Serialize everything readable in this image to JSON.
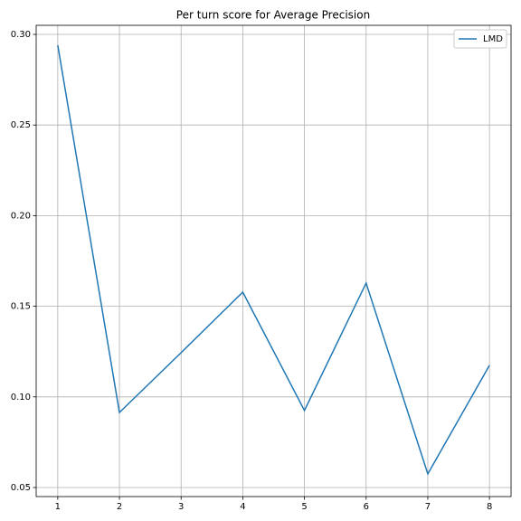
{
  "chart_data": {
    "type": "line",
    "title": "Per turn score for Average Precision",
    "x": [
      1,
      2,
      3,
      4,
      5,
      6,
      7,
      8
    ],
    "series": [
      {
        "name": "LMD",
        "color": "#1f77b4",
        "values": [
          0.294,
          0.0914,
          0.1244,
          0.1578,
          0.0925,
          0.1628,
          0.0575,
          0.1174
        ]
      }
    ],
    "xlim": [
      0.65,
      8.35
    ],
    "xticks": [
      1,
      2,
      3,
      4,
      5,
      6,
      7,
      8
    ],
    "ylim": [
      0.045,
      0.305
    ],
    "yticks": [
      {
        "value": 0.05,
        "label": "0.05"
      },
      {
        "value": 0.1,
        "label": "0.10"
      },
      0.15,
      {
        "value": 0.2,
        "label": "0.20"
      },
      0.25,
      {
        "value": 0.3,
        "label": "0.30"
      }
    ],
    "grid": true,
    "legend": "upper-right"
  }
}
